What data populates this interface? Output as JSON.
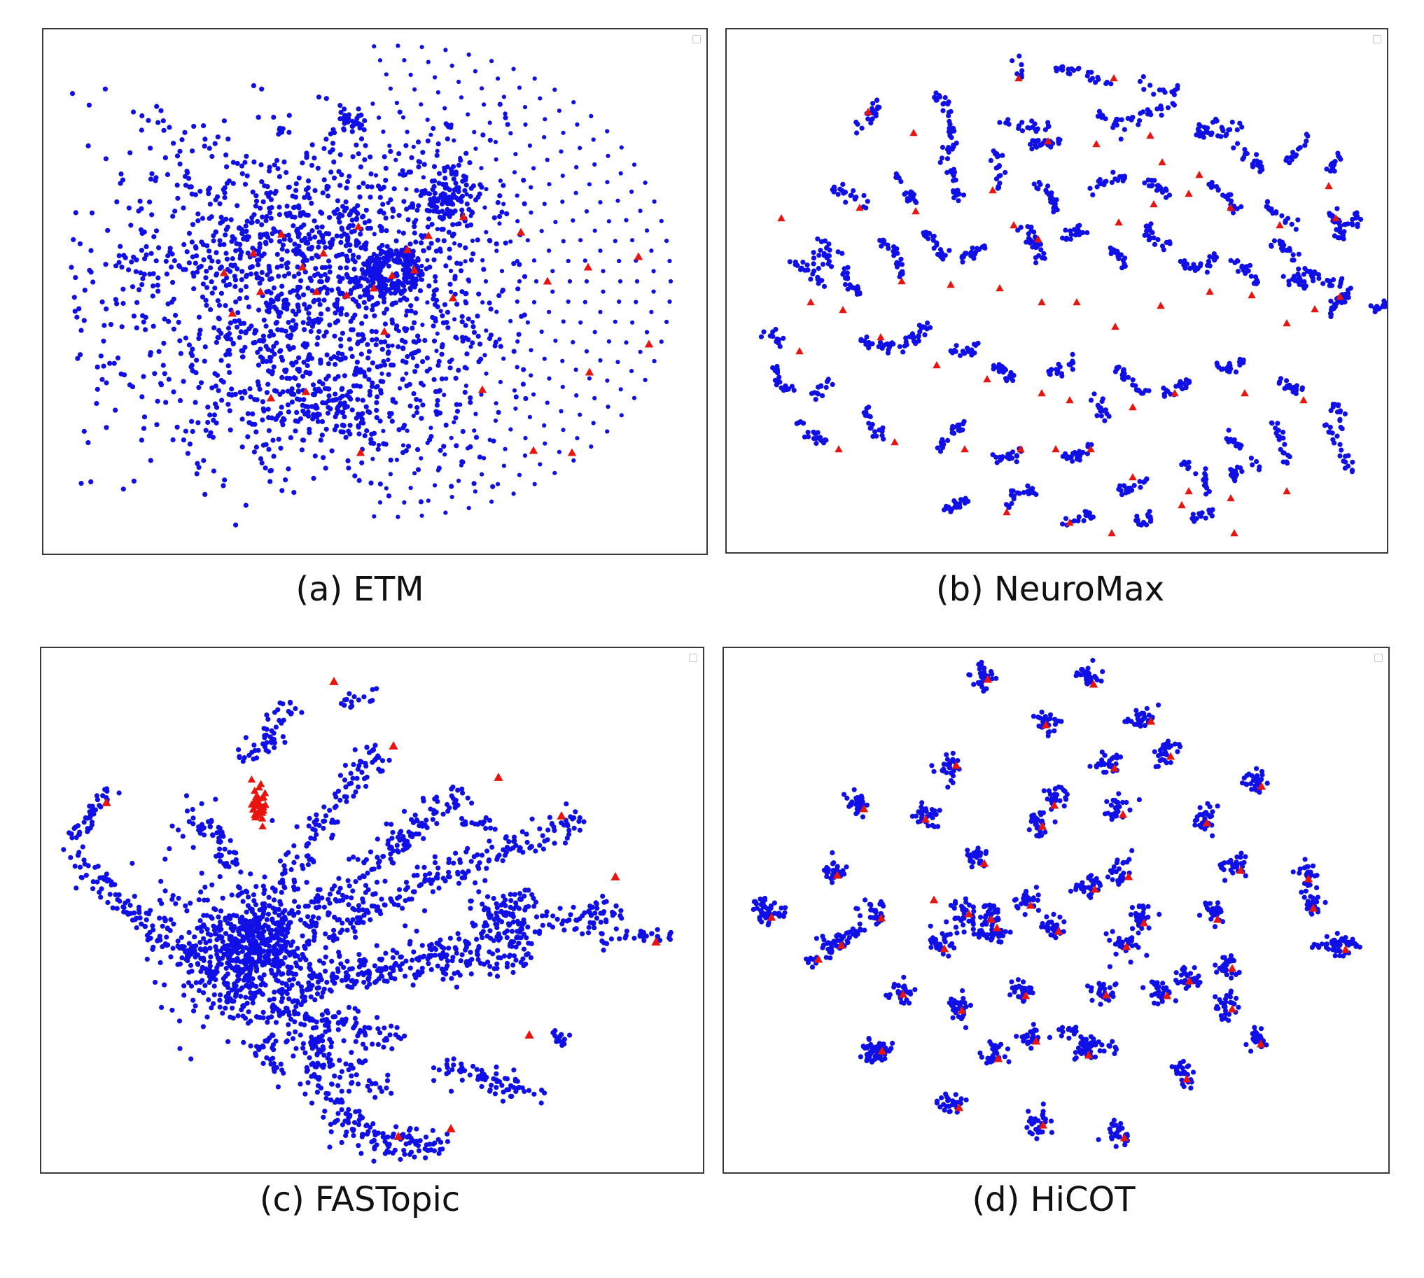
{
  "colors": {
    "word_point": "#1010e6",
    "topic_marker": "#e8150f",
    "frame": "#3a3a3a",
    "background": "#ffffff"
  },
  "markers": {
    "word": "circle",
    "topic": "triangle"
  },
  "chart_data": [
    {
      "type": "scatter",
      "caption": "(a) ETM",
      "layout_style": "dense-core-with-radial-grid",
      "axes": "hidden",
      "grid": false,
      "legend": "empty box, top-right",
      "series": [
        {
          "marker": "circle",
          "color": "#1010e6"
        },
        {
          "marker": "triangle",
          "color": "#e8150f"
        }
      ]
    },
    {
      "type": "scatter",
      "caption": "(b) NeuroMax",
      "layout_style": "many-elongated-strands",
      "axes": "hidden",
      "grid": false,
      "legend": "empty box, top-right",
      "series": [
        {
          "marker": "circle",
          "color": "#1010e6"
        },
        {
          "marker": "triangle",
          "color": "#e8150f"
        }
      ]
    },
    {
      "type": "scatter",
      "caption": "(c) FASTopic",
      "layout_style": "dense-hub-with-radiating-branches",
      "axes": "hidden",
      "grid": false,
      "legend": "empty box, top-right",
      "series": [
        {
          "marker": "circle",
          "color": "#1010e6"
        },
        {
          "marker": "triangle",
          "color": "#e8150f"
        }
      ]
    },
    {
      "type": "scatter",
      "caption": "(d) HiCOT",
      "layout_style": "compact-separated-clusters",
      "axes": "hidden",
      "grid": false,
      "legend": "empty box, top-right",
      "series": [
        {
          "marker": "circle",
          "color": "#1010e6"
        },
        {
          "marker": "triangle",
          "color": "#e8150f"
        }
      ]
    }
  ]
}
